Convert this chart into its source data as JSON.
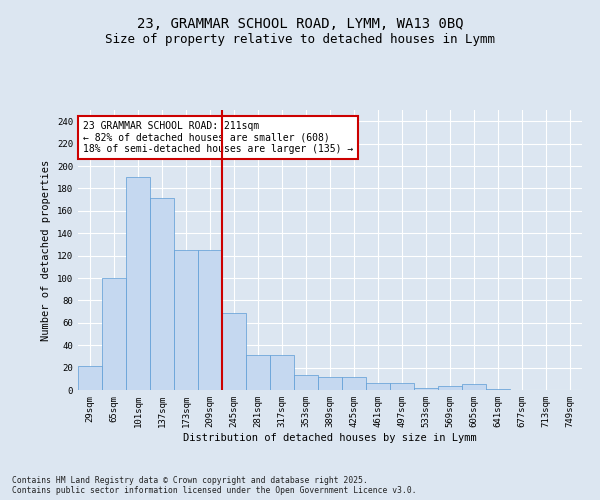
{
  "title_line1": "23, GRAMMAR SCHOOL ROAD, LYMM, WA13 0BQ",
  "title_line2": "Size of property relative to detached houses in Lymm",
  "xlabel": "Distribution of detached houses by size in Lymm",
  "ylabel": "Number of detached properties",
  "categories": [
    "29sqm",
    "65sqm",
    "101sqm",
    "137sqm",
    "173sqm",
    "209sqm",
    "245sqm",
    "281sqm",
    "317sqm",
    "353sqm",
    "389sqm",
    "425sqm",
    "461sqm",
    "497sqm",
    "533sqm",
    "569sqm",
    "605sqm",
    "641sqm",
    "677sqm",
    "713sqm",
    "749sqm"
  ],
  "values": [
    21,
    100,
    190,
    171,
    125,
    125,
    69,
    31,
    31,
    13,
    12,
    12,
    6,
    6,
    2,
    4,
    5,
    1,
    0,
    0,
    0
  ],
  "bar_color": "#c5d8f0",
  "bar_edge_color": "#5b9bd5",
  "background_color": "#dce6f1",
  "grid_color": "#ffffff",
  "red_line_x": 5.5,
  "annotation_text": "23 GRAMMAR SCHOOL ROAD: 211sqm\n← 82% of detached houses are smaller (608)\n18% of semi-detached houses are larger (135) →",
  "annotation_box_color": "#ffffff",
  "annotation_box_edge": "#cc0000",
  "ylim": [
    0,
    250
  ],
  "yticks": [
    0,
    20,
    40,
    60,
    80,
    100,
    120,
    140,
    160,
    180,
    200,
    220,
    240
  ],
  "footer": "Contains HM Land Registry data © Crown copyright and database right 2025.\nContains public sector information licensed under the Open Government Licence v3.0.",
  "title_fontsize": 10,
  "subtitle_fontsize": 9,
  "axis_label_fontsize": 7.5,
  "tick_fontsize": 6.5,
  "annotation_fontsize": 7
}
